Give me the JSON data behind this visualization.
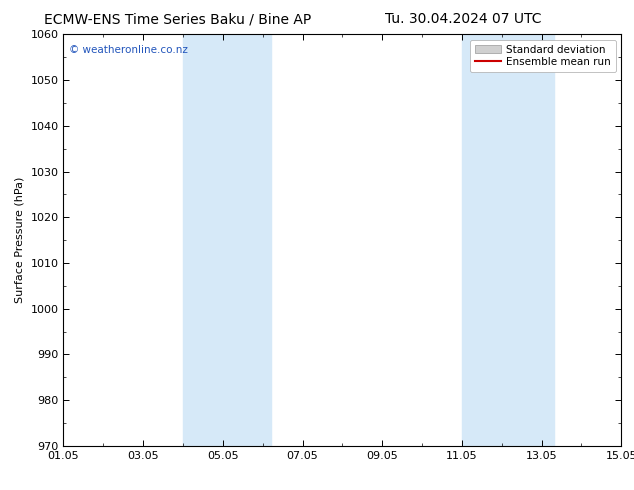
{
  "title_left": "ECMW-ENS Time Series Baku / Bine AP",
  "title_right": "Tu. 30.04.2024 07 UTC",
  "ylabel": "Surface Pressure (hPa)",
  "ylim": [
    970,
    1060
  ],
  "yticks": [
    970,
    980,
    990,
    1000,
    1010,
    1020,
    1030,
    1040,
    1050,
    1060
  ],
  "xlim": [
    0,
    14
  ],
  "xtick_labels": [
    "01.05",
    "03.05",
    "05.05",
    "07.05",
    "09.05",
    "11.05",
    "13.05",
    "15.05"
  ],
  "xtick_positions": [
    0,
    2,
    4,
    6,
    8,
    10,
    12,
    14
  ],
  "shaded_bands": [
    {
      "x_start": 3.0,
      "x_end": 5.2
    },
    {
      "x_start": 10.0,
      "x_end": 12.3
    }
  ],
  "shade_color": "#d6e9f8",
  "bg_color": "#ffffff",
  "legend_std_label": "Standard deviation",
  "legend_mean_label": "Ensemble mean run",
  "legend_std_facecolor": "#d0d0d0",
  "legend_std_edgecolor": "#999999",
  "legend_mean_color": "#cc0000",
  "watermark_text": "© weatheronline.co.nz",
  "watermark_color": "#2255bb",
  "title_fontsize": 10,
  "ylabel_fontsize": 8,
  "tick_fontsize": 8,
  "legend_fontsize": 7.5
}
